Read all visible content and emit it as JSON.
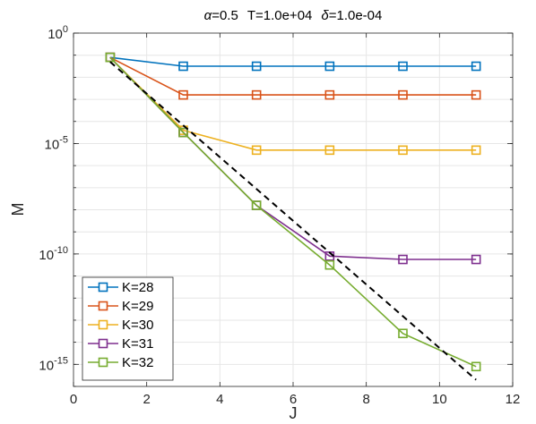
{
  "chart_data": {
    "type": "line",
    "title_parts": {
      "alpha": "α",
      "alpha_value": "=0.5",
      "T": "T=1.0e+04",
      "delta": "δ",
      "delta_value": "=1.0e-04"
    },
    "xlabel": "J",
    "ylabel": "M",
    "xlim": [
      0,
      12
    ],
    "ylim_log10": [
      -16,
      0
    ],
    "y_scale": "log",
    "grid": true,
    "x_ticks": [
      0,
      2,
      4,
      6,
      8,
      10,
      12
    ],
    "y_ticks": [
      {
        "exp": -15,
        "base": "10",
        "sup": "-15"
      },
      {
        "exp": -10,
        "base": "10",
        "sup": "-10"
      },
      {
        "exp": -5,
        "base": "10",
        "sup": "-5"
      },
      {
        "exp": 0,
        "base": "10",
        "sup": "0"
      }
    ],
    "legend_position": "bottom-left",
    "series": [
      {
        "name": "K=28",
        "color": "#0072BD",
        "x": [
          1,
          3,
          5,
          7,
          9,
          11
        ],
        "log10_y": [
          -1.1,
          -1.5,
          -1.5,
          -1.5,
          -1.5,
          -1.5
        ]
      },
      {
        "name": "K=29",
        "color": "#D95319",
        "x": [
          1,
          3,
          5,
          7,
          9,
          11
        ],
        "log10_y": [
          -1.1,
          -2.8,
          -2.8,
          -2.8,
          -2.8,
          -2.8
        ]
      },
      {
        "name": "K=30",
        "color": "#EDB120",
        "x": [
          1,
          3,
          5,
          7,
          9,
          11
        ],
        "log10_y": [
          -1.1,
          -4.4,
          -5.3,
          -5.3,
          -5.3,
          -5.3
        ]
      },
      {
        "name": "K=31",
        "color": "#7E2F8E",
        "x": [
          1,
          3,
          5,
          7,
          9,
          11
        ],
        "log10_y": [
          -1.1,
          -4.5,
          -7.8,
          -10.1,
          -10.25,
          -10.25
        ]
      },
      {
        "name": "K=32",
        "color": "#77AC30",
        "x": [
          1,
          3,
          5,
          7,
          9,
          11
        ],
        "log10_y": [
          -1.1,
          -4.5,
          -7.8,
          -10.5,
          -13.6,
          -15.1
        ]
      }
    ],
    "reference_line": {
      "style": "dashed",
      "color": "#000000",
      "x": [
        1,
        11
      ],
      "log10_y": [
        -1.3,
        -15.7
      ]
    }
  }
}
